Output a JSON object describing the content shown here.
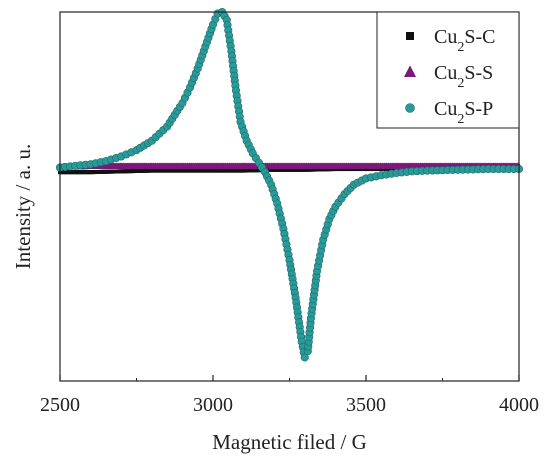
{
  "chart_data": {
    "type": "scatter",
    "title": "",
    "xlabel": "Magnetic filed / G",
    "ylabel": "Intensity / a. u.",
    "xlim": [
      2500,
      4000
    ],
    "ylim": [
      -1.35,
      1.0
    ],
    "x_ticks": [
      2500,
      3000,
      3500,
      4000
    ],
    "y_ticks_shown": false,
    "legend_position": "top-right",
    "grid": false,
    "series": [
      {
        "name": "Cu2S-C",
        "label_parts": [
          "Cu",
          "2",
          "S-C"
        ],
        "marker": "square",
        "color": "#111111",
        "x": [
          2500,
          2600,
          2700,
          2800,
          2900,
          3000,
          3100,
          3200,
          3300,
          3400,
          3500,
          3600,
          3700,
          3800,
          3900,
          4000
        ],
        "y": [
          -0.02,
          -0.02,
          -0.015,
          -0.01,
          -0.01,
          -0.01,
          -0.01,
          -0.005,
          -0.005,
          0,
          0,
          0,
          0,
          0,
          0,
          0
        ]
      },
      {
        "name": "Cu2S-S",
        "label_parts": [
          "Cu",
          "2",
          "S-S"
        ],
        "marker": "triangle",
        "color": "#7a1a78",
        "x": [
          2500,
          2600,
          2700,
          2800,
          2900,
          3000,
          3100,
          3200,
          3300,
          3400,
          3500,
          3600,
          3700,
          3800,
          3900,
          4000
        ],
        "y": [
          0,
          0.005,
          0.005,
          0.005,
          0.005,
          0.005,
          0.005,
          0.005,
          0.005,
          0.005,
          0.005,
          0.005,
          0.005,
          0.005,
          0.005,
          0.005
        ]
      },
      {
        "name": "Cu2S-P",
        "label_parts": [
          "Cu",
          "2",
          "S-P"
        ],
        "marker": "circle",
        "color": "#2a9a98",
        "x": [
          2500,
          2550,
          2600,
          2650,
          2700,
          2750,
          2800,
          2850,
          2900,
          2925,
          2950,
          2975,
          3000,
          3015,
          3030,
          3045,
          3060,
          3075,
          3090,
          3110,
          3130,
          3150,
          3170,
          3190,
          3210,
          3230,
          3250,
          3270,
          3290,
          3300,
          3310,
          3320,
          3340,
          3360,
          3380,
          3400,
          3430,
          3460,
          3500,
          3550,
          3600,
          3650,
          3700,
          3800,
          3900,
          4000
        ],
        "y": [
          0.01,
          0.02,
          0.03,
          0.05,
          0.08,
          0.12,
          0.18,
          0.27,
          0.42,
          0.52,
          0.64,
          0.78,
          0.92,
          0.99,
          1.0,
          0.95,
          0.75,
          0.5,
          0.3,
          0.18,
          0.1,
          0.04,
          -0.02,
          -0.1,
          -0.22,
          -0.38,
          -0.58,
          -0.82,
          -1.1,
          -1.2,
          -1.16,
          -0.95,
          -0.65,
          -0.45,
          -0.32,
          -0.24,
          -0.16,
          -0.1,
          -0.06,
          -0.04,
          -0.025,
          -0.015,
          -0.01,
          -0.005,
          0,
          0
        ]
      }
    ]
  }
}
